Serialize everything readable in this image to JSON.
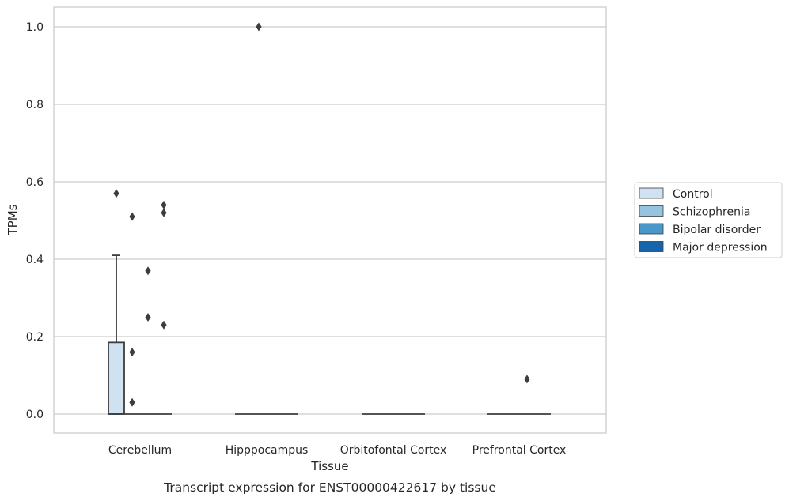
{
  "chart_data": {
    "type": "box",
    "caption": "Transcript expression for ENST00000422617 by tissue",
    "xlabel": "Tissue",
    "ylabel": "TPMs",
    "ylim": [
      -0.05,
      1.05
    ],
    "yticks": [
      0.0,
      0.2,
      0.4,
      0.6,
      0.8,
      1.0
    ],
    "ytick_labels": [
      "0.0",
      "0.2",
      "0.4",
      "0.6",
      "0.8",
      "1.0"
    ],
    "grid": "horizontal",
    "legend_placement": "right",
    "categories": [
      "Cerebellum",
      "Hipppocampus",
      "Orbitofontal Cortex",
      "Prefrontal Cortex"
    ],
    "series": [
      {
        "name": "Control",
        "color": "#d0e1f2",
        "boxes": [
          {
            "q1": 0.0,
            "median": 0.0,
            "q3": 0.185,
            "whisker_low": 0.0,
            "whisker_high": 0.41,
            "outliers": [
              0.57
            ]
          },
          {
            "q1": 0.0,
            "median": 0.0,
            "q3": 0.0,
            "whisker_low": 0.0,
            "whisker_high": 0.0,
            "outliers": []
          },
          {
            "q1": 0.0,
            "median": 0.0,
            "q3": 0.0,
            "whisker_low": 0.0,
            "whisker_high": 0.0,
            "outliers": []
          },
          {
            "q1": 0.0,
            "median": 0.0,
            "q3": 0.0,
            "whisker_low": 0.0,
            "whisker_high": 0.0,
            "outliers": []
          }
        ]
      },
      {
        "name": "Schizophrenia",
        "color": "#94c4df",
        "boxes": [
          {
            "q1": 0.0,
            "median": 0.0,
            "q3": 0.0,
            "whisker_low": 0.0,
            "whisker_high": 0.0,
            "outliers": [
              0.51,
              0.16,
              0.03
            ]
          },
          {
            "q1": 0.0,
            "median": 0.0,
            "q3": 0.0,
            "whisker_low": 0.0,
            "whisker_high": 0.0,
            "outliers": [
              1.0
            ]
          },
          {
            "q1": 0.0,
            "median": 0.0,
            "q3": 0.0,
            "whisker_low": 0.0,
            "whisker_high": 0.0,
            "outliers": []
          },
          {
            "q1": 0.0,
            "median": 0.0,
            "q3": 0.0,
            "whisker_low": 0.0,
            "whisker_high": 0.0,
            "outliers": []
          }
        ]
      },
      {
        "name": "Bipolar disorder",
        "color": "#4a98c9",
        "boxes": [
          {
            "q1": 0.0,
            "median": 0.0,
            "q3": 0.0,
            "whisker_low": 0.0,
            "whisker_high": 0.0,
            "outliers": [
              0.37,
              0.25
            ]
          },
          {
            "q1": 0.0,
            "median": 0.0,
            "q3": 0.0,
            "whisker_low": 0.0,
            "whisker_high": 0.0,
            "outliers": []
          },
          {
            "q1": 0.0,
            "median": 0.0,
            "q3": 0.0,
            "whisker_low": 0.0,
            "whisker_high": 0.0,
            "outliers": []
          },
          {
            "q1": 0.0,
            "median": 0.0,
            "q3": 0.0,
            "whisker_low": 0.0,
            "whisker_high": 0.0,
            "outliers": [
              0.09
            ]
          }
        ]
      },
      {
        "name": "Major depression",
        "color": "#1764ab",
        "boxes": [
          {
            "q1": 0.0,
            "median": 0.0,
            "q3": 0.0,
            "whisker_low": 0.0,
            "whisker_high": 0.0,
            "outliers": [
              0.54,
              0.52,
              0.23
            ]
          },
          {
            "q1": 0.0,
            "median": 0.0,
            "q3": 0.0,
            "whisker_low": 0.0,
            "whisker_high": 0.0,
            "outliers": []
          },
          {
            "q1": 0.0,
            "median": 0.0,
            "q3": 0.0,
            "whisker_low": 0.0,
            "whisker_high": 0.0,
            "outliers": []
          },
          {
            "q1": 0.0,
            "median": 0.0,
            "q3": 0.0,
            "whisker_low": 0.0,
            "whisker_high": 0.0,
            "outliers": []
          }
        ]
      }
    ]
  }
}
